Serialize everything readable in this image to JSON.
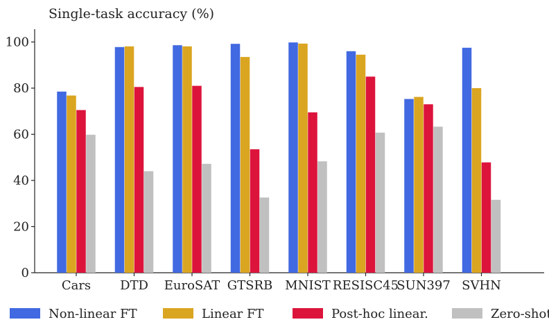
{
  "chart_data": {
    "type": "bar",
    "title": "Single-task accuracy (%)",
    "xlabel": "",
    "ylabel": "",
    "ylim": [
      0,
      105
    ],
    "yticks": [
      0,
      20,
      40,
      60,
      80,
      100
    ],
    "grid": false,
    "legend_position": "bottom",
    "categories": [
      "Cars",
      "DTD",
      "EuroSAT",
      "GTSRB",
      "MNIST",
      "RESISC45",
      "SUN397",
      "SVHN"
    ],
    "series": [
      {
        "name": "Non-linear FT",
        "color": "#4169E1",
        "values": [
          78.5,
          97.8,
          98.6,
          99.2,
          99.8,
          96.0,
          75.3,
          97.5
        ]
      },
      {
        "name": "Linear FT",
        "color": "#DAA520",
        "values": [
          76.8,
          98.1,
          98.1,
          93.5,
          99.3,
          94.5,
          76.2,
          80.0
        ]
      },
      {
        "name": "Post-hoc linear.",
        "color": "#DC143C",
        "values": [
          70.5,
          80.5,
          81.0,
          53.5,
          69.5,
          85.0,
          73.0,
          47.8
        ]
      },
      {
        "name": "Zero-shot",
        "color": "#C0C0C0",
        "values": [
          59.8,
          44.0,
          47.2,
          32.6,
          48.3,
          60.7,
          63.3,
          31.6
        ]
      }
    ]
  }
}
